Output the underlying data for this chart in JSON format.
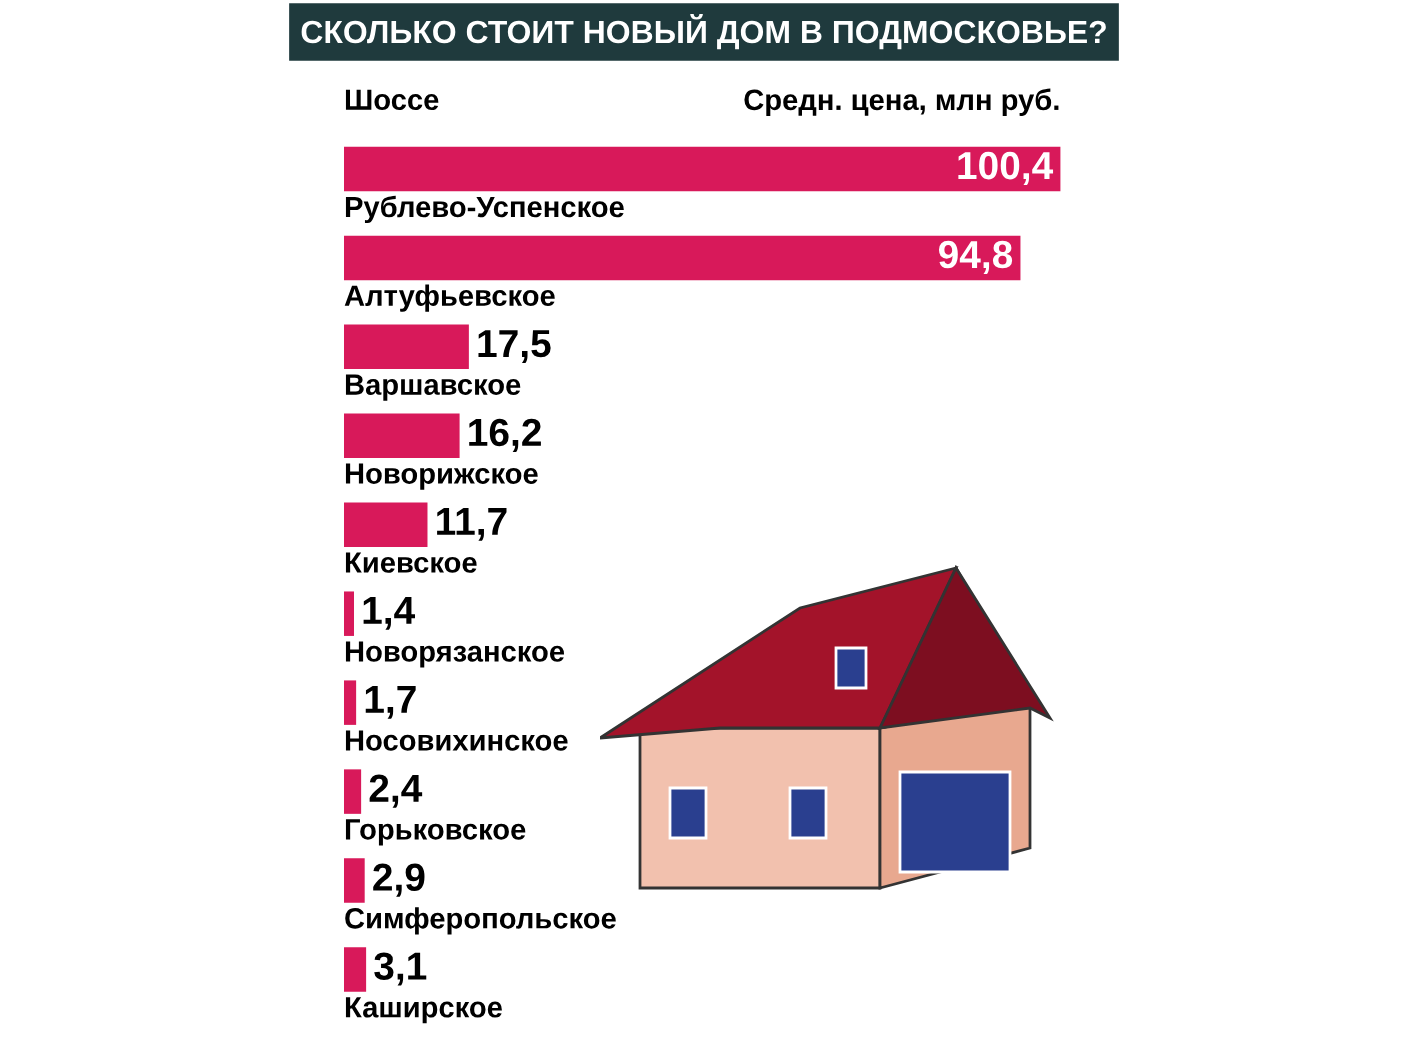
{
  "chart_data": {
    "type": "bar",
    "orientation": "horizontal",
    "title": "СКОЛЬКО СТОИТ НОВЫЙ ДОМ В ПОДМОСКОВЬЕ?",
    "ylabel": "Шоссе",
    "xlabel": "Средн. цена, млн руб.",
    "categories": [
      "Рублево-Успенское",
      "Алтуфьевское",
      "Варшавское",
      "Новорижское",
      "Киевское",
      "Новорязанское",
      "Носовихинское",
      "Горьковское",
      "Симферопольское",
      "Каширское"
    ],
    "values": [
      100.4,
      94.8,
      17.5,
      16.2,
      11.7,
      1.4,
      1.7,
      2.4,
      2.9,
      3.1
    ],
    "value_labels": [
      "100,4",
      "94,8",
      "17,5",
      "16,2",
      "11,7",
      "1,4",
      "1,7",
      "2,4",
      "2,9",
      "3,1"
    ],
    "color": "#d8195a"
  }
}
